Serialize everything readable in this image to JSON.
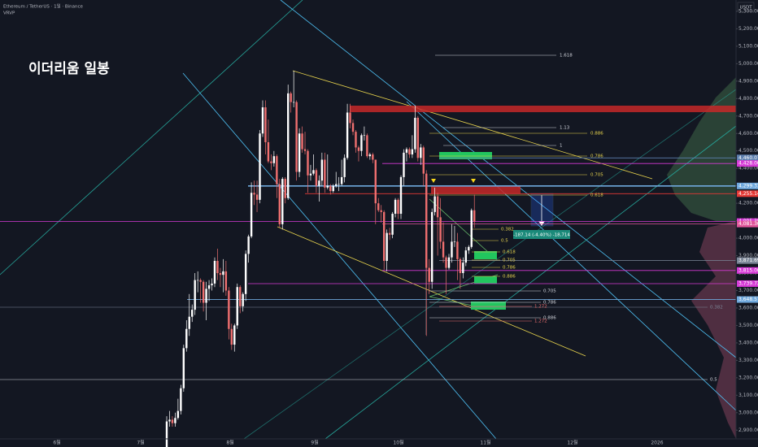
{
  "header": {
    "symbol": "Ethereum / TetherUS · 1일 · Binance",
    "indicator": "VRVP",
    "title": "이더리움 일봉",
    "currency": "USDT"
  },
  "chart_data": {
    "type": "candlestick",
    "up_color": "#ffffff",
    "down_color": "#ef6f6f",
    "log_scale": false,
    "grid": false,
    "ylim": [
      2850,
      5365
    ],
    "yticks": [
      {
        "value": 2900,
        "label": "2,900.00"
      },
      {
        "value": 3000,
        "label": "3,000.00"
      },
      {
        "value": 3100,
        "label": "3,100.00"
      },
      {
        "value": 3200,
        "label": "3,200.00"
      },
      {
        "value": 3300,
        "label": "3,300.00"
      },
      {
        "value": 3400,
        "label": "3,400.00"
      },
      {
        "value": 3500,
        "label": "3,500.00"
      },
      {
        "value": 3600,
        "label": "3,600.00"
      },
      {
        "value": 3700,
        "label": "3,700.00"
      },
      {
        "value": 3800,
        "label": "3,800.00"
      },
      {
        "value": 3900,
        "label": "3,900.00"
      },
      {
        "value": 4000,
        "label": "4,000.00"
      },
      {
        "value": 4100,
        "label": "4,100.00"
      },
      {
        "value": 4200,
        "label": "4,200.00"
      },
      {
        "value": 4300,
        "label": "4,300.00"
      },
      {
        "value": 4400,
        "label": "4,400.00"
      },
      {
        "value": 4500,
        "label": "4,500.00"
      },
      {
        "value": 4600,
        "label": "4,600.00"
      },
      {
        "value": 4700,
        "label": "4,700.00"
      },
      {
        "value": 4800,
        "label": "4,800.00"
      },
      {
        "value": 4900,
        "label": "4,900.00"
      },
      {
        "value": 5000,
        "label": "5,000.00"
      },
      {
        "value": 5100,
        "label": "5,100.00"
      },
      {
        "value": 5200,
        "label": "5,200.00"
      },
      {
        "value": 5300,
        "label": "5,300.00"
      }
    ],
    "xticks": [
      "6월",
      "7월",
      "8월",
      "9월",
      "10월",
      "11월",
      "12월",
      "2026"
    ],
    "candles": [
      [
        2770,
        2980,
        2760,
        2950
      ],
      [
        2950,
        3010,
        2920,
        2960
      ],
      [
        2960,
        2980,
        2920,
        2940
      ],
      [
        2940,
        3000,
        2920,
        2970
      ],
      [
        2970,
        3080,
        2960,
        3010
      ],
      [
        3010,
        3160,
        2990,
        3140
      ],
      [
        3140,
        3390,
        3120,
        3370
      ],
      [
        3370,
        3530,
        3350,
        3480
      ],
      [
        3480,
        3680,
        3440,
        3550
      ],
      [
        3550,
        3620,
        3520,
        3590
      ],
      [
        3590,
        3800,
        3560,
        3760
      ],
      [
        3760,
        3810,
        3690,
        3760
      ],
      [
        3760,
        3770,
        3630,
        3750
      ],
      [
        3750,
        3760,
        3580,
        3630
      ],
      [
        3630,
        3750,
        3530,
        3710
      ],
      [
        3710,
        3760,
        3640,
        3730
      ],
      [
        3730,
        3770,
        3700,
        3740
      ],
      [
        3740,
        3890,
        3720,
        3870
      ],
      [
        3870,
        3940,
        3760,
        3800
      ],
      [
        3800,
        3830,
        3720,
        3790
      ],
      [
        3790,
        3880,
        3690,
        3810
      ],
      [
        3810,
        3870,
        3670,
        3700
      ],
      [
        3700,
        3720,
        3420,
        3480
      ],
      [
        3480,
        3510,
        3360,
        3390
      ],
      [
        3390,
        3510,
        3350,
        3500
      ],
      [
        3500,
        3740,
        3480,
        3720
      ],
      [
        3720,
        3730,
        3570,
        3610
      ],
      [
        3610,
        3690,
        3580,
        3680
      ],
      [
        3680,
        3930,
        3640,
        3910
      ],
      [
        3910,
        4020,
        3860,
        4010
      ],
      [
        4010,
        4320,
        4000,
        4260
      ],
      [
        4260,
        4330,
        4190,
        4250
      ],
      [
        4250,
        4330,
        4150,
        4220
      ],
      [
        4220,
        4620,
        4200,
        4600
      ],
      [
        4600,
        4790,
        4580,
        4750
      ],
      [
        4750,
        4790,
        4480,
        4550
      ],
      [
        4550,
        4680,
        4430,
        4440
      ],
      [
        4440,
        4480,
        4390,
        4430
      ],
      [
        4430,
        4500,
        4410,
        4470
      ],
      [
        4470,
        4480,
        4230,
        4310
      ],
      [
        4310,
        4340,
        4060,
        4080
      ],
      [
        4080,
        4350,
        4050,
        4340
      ],
      [
        4340,
        4350,
        4200,
        4230
      ],
      [
        4230,
        4880,
        4220,
        4830
      ],
      [
        4830,
        4840,
        4720,
        4780
      ],
      [
        4780,
        4960,
        4750,
        4780
      ],
      [
        4780,
        4790,
        4330,
        4380
      ],
      [
        4380,
        4630,
        4350,
        4600
      ],
      [
        4600,
        4640,
        4490,
        4510
      ],
      [
        4510,
        4610,
        4480,
        4500
      ],
      [
        4500,
        4510,
        4260,
        4360
      ],
      [
        4360,
        4420,
        4330,
        4370
      ],
      [
        4370,
        4480,
        4360,
        4390
      ],
      [
        4390,
        4400,
        4260,
        4300
      ],
      [
        4300,
        4360,
        4210,
        4330
      ],
      [
        4330,
        4490,
        4300,
        4450
      ],
      [
        4450,
        4490,
        4260,
        4290
      ],
      [
        4290,
        4480,
        4280,
        4300
      ],
      [
        4300,
        4310,
        4250,
        4270
      ],
      [
        4270,
        4310,
        4260,
        4300
      ],
      [
        4300,
        4380,
        4290,
        4310
      ],
      [
        4310,
        4350,
        4270,
        4310
      ],
      [
        4310,
        4450,
        4300,
        4350
      ],
      [
        4350,
        4480,
        4320,
        4460
      ],
      [
        4460,
        4770,
        4450,
        4720
      ],
      [
        4720,
        4770,
        4630,
        4660
      ],
      [
        4660,
        4680,
        4590,
        4610
      ],
      [
        4610,
        4620,
        4490,
        4520
      ],
      [
        4520,
        4530,
        4440,
        4500
      ],
      [
        4500,
        4600,
        4470,
        4590
      ],
      [
        4590,
        4640,
        4560,
        4590
      ],
      [
        4590,
        4600,
        4460,
        4470
      ],
      [
        4470,
        4490,
        4450,
        4480
      ],
      [
        4480,
        4490,
        4430,
        4450
      ],
      [
        4450,
        4450,
        4080,
        4200
      ],
      [
        4200,
        4230,
        4150,
        4160
      ],
      [
        4160,
        4190,
        4090,
        4150
      ],
      [
        4150,
        4160,
        3820,
        3870
      ],
      [
        3870,
        4050,
        3810,
        4030
      ],
      [
        4030,
        4060,
        3990,
        4020
      ],
      [
        4020,
        4150,
        4000,
        4140
      ],
      [
        4140,
        4230,
        4120,
        4220
      ],
      [
        4220,
        4230,
        4110,
        4140
      ],
      [
        4140,
        4360,
        4110,
        4350
      ],
      [
        4350,
        4510,
        4300,
        4490
      ],
      [
        4490,
        4520,
        4440,
        4510
      ],
      [
        4510,
        4520,
        4460,
        4480
      ],
      [
        4480,
        4590,
        4460,
        4510
      ],
      [
        4510,
        4760,
        4490,
        4690
      ],
      [
        4690,
        4700,
        4440,
        4460
      ],
      [
        4460,
        4540,
        4420,
        4520
      ],
      [
        4520,
        4530,
        4300,
        4370
      ],
      [
        4370,
        4390,
        3440,
        3830
      ],
      [
        3830,
        3880,
        3680,
        3750
      ],
      [
        3750,
        4170,
        3710,
        4150
      ],
      [
        4150,
        4290,
        4130,
        4240
      ],
      [
        4240,
        4260,
        3900,
        4120
      ],
      [
        4120,
        4230,
        3940,
        3980
      ],
      [
        3980,
        4090,
        3860,
        3890
      ],
      [
        3890,
        3900,
        3680,
        3830
      ],
      [
        3830,
        3910,
        3820,
        3890
      ],
      [
        3890,
        4080,
        3860,
        3980
      ],
      [
        3980,
        4070,
        3950,
        3980
      ],
      [
        3980,
        4030,
        3760,
        3880
      ],
      [
        3880,
        3890,
        3710,
        3800
      ],
      [
        3800,
        3890,
        3770,
        3860
      ],
      [
        3860,
        3950,
        3840,
        3930
      ],
      [
        3930,
        3960,
        3910,
        3950
      ],
      [
        3950,
        4170,
        3940,
        4160
      ],
      [
        4160,
        4250,
        4060,
        4095.39
      ]
    ],
    "price_tags": [
      {
        "value": 4460.07,
        "label": "4,460.07",
        "color": "#5d7fae"
      },
      {
        "value": 4428.0,
        "label": "4,428.00",
        "color": "#d63ad6"
      },
      {
        "value": 4299.33,
        "label": "4,299.33",
        "color": "#6fa8dc"
      },
      {
        "value": 4255.14,
        "label": "4,255.14",
        "color": "#e53935"
      },
      {
        "value": 4095.39,
        "label": "4,095.39",
        "color": "#d63ad6"
      },
      {
        "value": 4081.36,
        "label": "4,081.36",
        "color": "#e0569a"
      },
      {
        "value": 3871.69,
        "label": "3,871.69",
        "color": "#7c8798"
      },
      {
        "value": 3815.0,
        "label": "3,815.00",
        "color": "#d63ad6"
      },
      {
        "value": 3739.72,
        "label": "3,739.72",
        "color": "#d63ad6"
      },
      {
        "value": 3648.57,
        "label": "3,648.57",
        "color": "#6fa8dc"
      }
    ],
    "fib_labels": [
      "1.618",
      "1.13",
      "0.886",
      "1",
      "0.786",
      "0.705",
      "0.618",
      "0.382",
      "0.5",
      "0.618",
      "0.705",
      "0.786",
      "0.886",
      "0.705",
      "0.786",
      "1.272",
      "0.886",
      "1.272",
      "0.382",
      "0.5"
    ],
    "measure": "-187.14 (-4.40%) -18,714"
  }
}
